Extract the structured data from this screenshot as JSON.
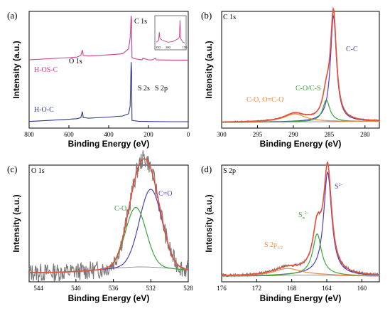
{
  "chart_data": [
    {
      "panel": "(a)",
      "type": "line",
      "title": "",
      "xlabel": "Binding Energy (eV)",
      "ylabel": "Intensity (a.u.)",
      "xlim": [
        800,
        0
      ],
      "xticks": [
        800,
        600,
        400,
        200,
        0
      ],
      "x_reversed": true,
      "series": [
        {
          "name": "H-OS-C",
          "color": "#d33d8c",
          "points": [
            [
              800,
              0.6
            ],
            [
              700,
              0.61
            ],
            [
              600,
              0.62
            ],
            [
              560,
              0.625
            ],
            [
              540,
              0.64
            ],
            [
              532,
              0.69
            ],
            [
              528,
              0.64
            ],
            [
              500,
              0.635
            ],
            [
              400,
              0.645
            ],
            [
              330,
              0.655
            ],
            [
              300,
              0.7
            ],
            [
              292,
              0.8
            ],
            [
              287,
              1.0
            ],
            [
              285,
              0.96
            ],
            [
              283,
              0.62
            ],
            [
              270,
              0.61
            ],
            [
              232,
              0.6
            ],
            [
              228,
              0.615
            ],
            [
              200,
              0.6
            ],
            [
              180,
              0.6
            ],
            [
              165,
              0.615
            ],
            [
              160,
              0.6
            ],
            [
              100,
              0.598
            ],
            [
              0,
              0.598
            ]
          ]
        },
        {
          "name": "H-O-C",
          "color": "#2b3a96",
          "points": [
            [
              800,
              0.04
            ],
            [
              700,
              0.05
            ],
            [
              600,
              0.06
            ],
            [
              560,
              0.065
            ],
            [
              540,
              0.075
            ],
            [
              532,
              0.13
            ],
            [
              528,
              0.075
            ],
            [
              500,
              0.07
            ],
            [
              400,
              0.08
            ],
            [
              330,
              0.09
            ],
            [
              300,
              0.11
            ],
            [
              292,
              0.18
            ],
            [
              287,
              0.58
            ],
            [
              285,
              0.5
            ],
            [
              283,
              0.05
            ],
            [
              250,
              0.042
            ],
            [
              200,
              0.04
            ],
            [
              100,
              0.038
            ],
            [
              0,
              0.038
            ]
          ]
        }
      ],
      "annotations": [
        "C 1s",
        "O 1s",
        "S 2s",
        "S 2p"
      ],
      "inset": {
        "xticks": [
          230,
          200,
          150
        ],
        "points": [
          [
            235,
            0.3
          ],
          [
            228,
            0.35
          ],
          [
            226,
            0.6
          ],
          [
            224,
            0.4
          ],
          [
            215,
            0.35
          ],
          [
            200,
            0.3
          ],
          [
            185,
            0.32
          ],
          [
            170,
            0.4
          ],
          [
            166,
            0.45
          ],
          [
            164,
            0.95
          ],
          [
            162,
            0.4
          ],
          [
            155,
            0.3
          ],
          [
            150,
            0.28
          ]
        ]
      }
    },
    {
      "panel": "(b)",
      "type": "line",
      "title": "C 1s",
      "xlabel": "Binding Energy (eV)",
      "ylabel": "Intensity (a.u.)",
      "xlim": [
        300,
        278
      ],
      "xticks": [
        300,
        295,
        290,
        285,
        280
      ],
      "x_reversed": true,
      "background": 0.05,
      "components": [
        {
          "name": "C-C",
          "center": 284.4,
          "width": 0.5,
          "height": 0.93,
          "color": "#4a3fc0"
        },
        {
          "name": "C-O/C-S",
          "center": 285.4,
          "width": 0.6,
          "height": 0.19,
          "color": "#3aa53a"
        },
        {
          "name": "C-O, O=C-O",
          "center": 289.8,
          "width": 1.8,
          "height": 0.07,
          "color": "#f08a3c"
        }
      ],
      "colors": {
        "data": "#777777",
        "fit": "#e8503a",
        "background": "#888888"
      }
    },
    {
      "panel": "(c)",
      "type": "line",
      "title": "O 1s",
      "xlabel": "Binding Energy (eV)",
      "ylabel": "Intensity (a.u.)",
      "xlim": [
        545,
        528
      ],
      "xticks": [
        544,
        540,
        536,
        532,
        528
      ],
      "x_reversed": true,
      "background": 0.08,
      "components": [
        {
          "name": "C=O",
          "center": 532.0,
          "width": 1.2,
          "height": 0.68,
          "color": "#4a3fc0"
        },
        {
          "name": "C-O",
          "center": 533.6,
          "width": 1.1,
          "height": 0.52,
          "color": "#3aa53a"
        }
      ],
      "colors": {
        "data": "#777777",
        "fit": "#e8503a",
        "background": "#888888"
      }
    },
    {
      "panel": "(d)",
      "type": "line",
      "title": "S 2p",
      "xlabel": "Binding Energy (eV)",
      "ylabel": "Intensity (a.u.)",
      "xlim": [
        176,
        158
      ],
      "xticks": [
        176,
        172,
        168,
        164,
        160
      ],
      "x_reversed": true,
      "background": 0.05,
      "components": [
        {
          "name": "S²⁻",
          "center": 163.9,
          "width": 0.55,
          "height": 0.9,
          "color": "#4a3fc0"
        },
        {
          "name": "Sₙ²⁻",
          "center": 165.1,
          "width": 0.6,
          "height": 0.36,
          "color": "#3aa53a"
        },
        {
          "name": "S 2p₁/₂",
          "center": 168.5,
          "width": 1.8,
          "height": 0.06,
          "color": "#f08a3c"
        }
      ],
      "colors": {
        "data": "#777777",
        "fit": "#e8503a",
        "background": "#888888"
      }
    }
  ],
  "labels": {
    "a_panel": "(a)",
    "b_panel": "(b)",
    "c_panel": "(c)",
    "d_panel": "(d)",
    "a_c1s": "C 1s",
    "a_o1s": "O 1s",
    "a_s2s": "S 2s",
    "a_s2p": "S 2p",
    "a_hosc": "H-OS-C",
    "a_hoc": "H-O-C",
    "b_title": "C 1s",
    "b_cc": "C-C",
    "b_cocs": "C-O/C-S",
    "b_coco": "C-O, O=C-O",
    "c_title": "O 1s",
    "c_co": "C-O",
    "c_cdo": "C=O",
    "d_title": "S 2p",
    "d_s2": "S",
    "d_s2_sup": "2-",
    "d_sn": "S",
    "d_sn_sub": "n",
    "d_sn_sup": "2-",
    "d_s2p": "S 2p",
    "d_s2p_sub": "1/2",
    "xlabel": "Binding Energy (eV)",
    "ylabel": "Intensity (a.u.)"
  }
}
